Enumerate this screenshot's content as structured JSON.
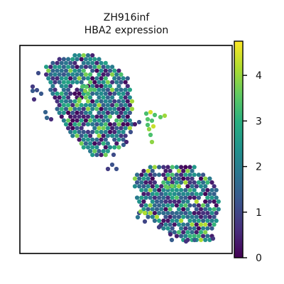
{
  "chart_data": {
    "type": "scatter",
    "title": "ZH916inf",
    "subtitle": "HBA2 expression",
    "xlabel": "",
    "ylabel": "",
    "colorbar": {
      "colormap": "viridis",
      "range": [
        0,
        4.75
      ],
      "ticks": [
        0,
        1,
        2,
        3,
        4
      ],
      "tick_labels": [
        "0",
        "1",
        "2",
        "3",
        "4"
      ]
    },
    "clusters": [
      {
        "region": "upper-left tissue lobe",
        "points_approx": 220,
        "expression_range": [
          0,
          4.2
        ],
        "mean_expression": 1.6
      },
      {
        "region": "small central cluster",
        "points_approx": 12,
        "expression_range": [
          3.2,
          4.6
        ],
        "mean_expression": 4.1
      },
      {
        "region": "lower-right tissue lobe",
        "points_approx": 260,
        "expression_range": [
          0,
          4.3
        ],
        "mean_expression": 1.5
      }
    ],
    "grid": false,
    "legend": "colorbar-right",
    "colors": {
      "low": "#440154",
      "mid": "#21918c",
      "high": "#fde725",
      "frame": "#000000"
    }
  }
}
